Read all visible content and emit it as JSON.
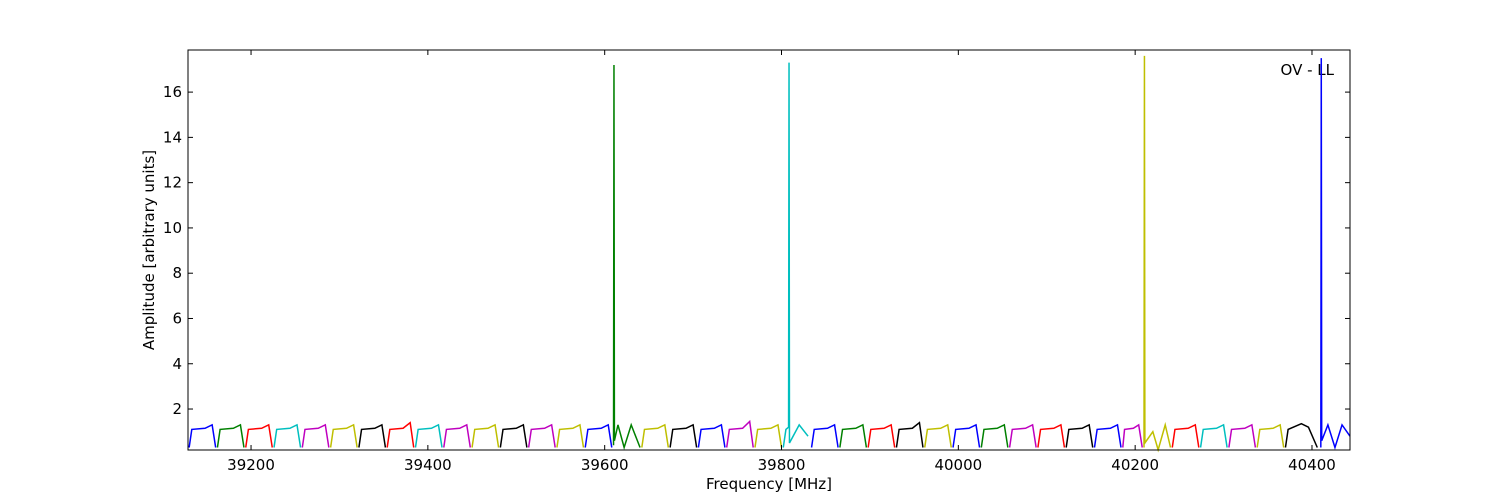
{
  "chart_data": {
    "type": "line",
    "annotation": "OV - LL",
    "xlabel": "Frequency [MHz]",
    "ylabel": "Amplitude [arbitrary units]",
    "xlim": [
      39128.7,
      40443
    ],
    "ylim": [
      0.19,
      17.86
    ],
    "xticks": [
      39200,
      39400,
      39600,
      39800,
      40000,
      40200,
      40400
    ],
    "yticks": [
      2,
      4,
      6,
      8,
      10,
      12,
      14,
      16
    ],
    "series": [
      {
        "color": "#0000ff",
        "x": [
          39130,
          39133,
          39148,
          39156,
          39160
        ],
        "values": [
          0.3,
          1.1,
          1.15,
          1.3,
          0.3
        ]
      },
      {
        "color": "#008000",
        "x": [
          39162,
          39165,
          39180,
          39188,
          39192
        ],
        "values": [
          0.3,
          1.1,
          1.15,
          1.3,
          0.3
        ]
      },
      {
        "color": "#ff0000",
        "x": [
          39194,
          39197,
          39212,
          39220,
          39224
        ],
        "values": [
          0.3,
          1.1,
          1.15,
          1.3,
          0.3
        ]
      },
      {
        "color": "#00bfbf",
        "x": [
          39226,
          39229,
          39244,
          39252,
          39256
        ],
        "values": [
          0.3,
          1.1,
          1.15,
          1.3,
          0.3
        ]
      },
      {
        "color": "#bf00bf",
        "x": [
          39258,
          39261,
          39276,
          39284,
          39288
        ],
        "values": [
          0.3,
          1.1,
          1.15,
          1.3,
          0.3
        ]
      },
      {
        "color": "#bfbf00",
        "x": [
          39290,
          39293,
          39308,
          39316,
          39320
        ],
        "values": [
          0.3,
          1.1,
          1.15,
          1.3,
          0.3
        ]
      },
      {
        "color": "#000000",
        "x": [
          39322,
          39325,
          39340,
          39348,
          39352
        ],
        "values": [
          0.3,
          1.1,
          1.15,
          1.3,
          0.3
        ]
      },
      {
        "color": "#ff0000",
        "x": [
          39354,
          39357,
          39372,
          39380,
          39384
        ],
        "values": [
          0.3,
          1.1,
          1.15,
          1.4,
          0.3
        ]
      },
      {
        "color": "#00bfbf",
        "x": [
          39386,
          39389,
          39404,
          39412,
          39416
        ],
        "values": [
          0.3,
          1.1,
          1.15,
          1.3,
          0.3
        ]
      },
      {
        "color": "#bf00bf",
        "x": [
          39418,
          39421,
          39436,
          39444,
          39448
        ],
        "values": [
          0.3,
          1.1,
          1.15,
          1.3,
          0.3
        ]
      },
      {
        "color": "#bfbf00",
        "x": [
          39450,
          39453,
          39468,
          39476,
          39480
        ],
        "values": [
          0.3,
          1.1,
          1.15,
          1.3,
          0.3
        ]
      },
      {
        "color": "#000000",
        "x": [
          39482,
          39485,
          39500,
          39508,
          39512
        ],
        "values": [
          0.3,
          1.1,
          1.15,
          1.3,
          0.3
        ]
      },
      {
        "color": "#bf00bf",
        "x": [
          39514,
          39517,
          39532,
          39540,
          39544
        ],
        "values": [
          0.3,
          1.1,
          1.15,
          1.3,
          0.3
        ]
      },
      {
        "color": "#bfbf00",
        "x": [
          39546,
          39549,
          39564,
          39572,
          39576
        ],
        "values": [
          0.3,
          1.1,
          1.15,
          1.3,
          0.3
        ]
      },
      {
        "color": "#0000ff",
        "x": [
          39578,
          39581,
          39596,
          39604,
          39608
        ],
        "values": [
          0.3,
          1.1,
          1.15,
          1.3,
          0.3
        ]
      },
      {
        "color": "#008000",
        "x": [
          39610,
          39610.5,
          39611,
          39615,
          39622,
          39630,
          39640
        ],
        "values": [
          0.4,
          17.2,
          0.6,
          1.3,
          0.3,
          1.3,
          0.3
        ]
      },
      {
        "color": "#bfbf00",
        "x": [
          39642,
          39645,
          39660,
          39668,
          39672
        ],
        "values": [
          0.3,
          1.1,
          1.15,
          1.3,
          0.3
        ]
      },
      {
        "color": "#000000",
        "x": [
          39674,
          39677,
          39692,
          39700,
          39704
        ],
        "values": [
          0.3,
          1.1,
          1.15,
          1.3,
          0.3
        ]
      },
      {
        "color": "#0000ff",
        "x": [
          39706,
          39709,
          39724,
          39732,
          39736
        ],
        "values": [
          0.3,
          1.1,
          1.15,
          1.3,
          0.3
        ]
      },
      {
        "color": "#bf00bf",
        "x": [
          39738,
          39741,
          39756,
          39764,
          39768
        ],
        "values": [
          0.3,
          1.1,
          1.15,
          1.45,
          0.3
        ]
      },
      {
        "color": "#bfbf00",
        "x": [
          39770,
          39773,
          39788,
          39796,
          39800
        ],
        "values": [
          0.3,
          1.1,
          1.15,
          1.3,
          0.3
        ]
      },
      {
        "color": "#00bfbf",
        "x": [
          39802,
          39805,
          39808,
          39808.5,
          39809,
          39820,
          39830
        ],
        "values": [
          0.3,
          1.1,
          1.2,
          17.3,
          0.5,
          1.3,
          0.8
        ]
      },
      {
        "color": "#0000ff",
        "x": [
          39834,
          39837,
          39852,
          39860,
          39864
        ],
        "values": [
          0.3,
          1.1,
          1.15,
          1.3,
          0.3
        ]
      },
      {
        "color": "#008000",
        "x": [
          39866,
          39869,
          39884,
          39892,
          39896
        ],
        "values": [
          0.3,
          1.1,
          1.15,
          1.3,
          0.3
        ]
      },
      {
        "color": "#ff0000",
        "x": [
          39898,
          39901,
          39916,
          39924,
          39928
        ],
        "values": [
          0.3,
          1.1,
          1.15,
          1.3,
          0.3
        ]
      },
      {
        "color": "#000000",
        "x": [
          39930,
          39933,
          39948,
          39956,
          39960
        ],
        "values": [
          0.3,
          1.1,
          1.15,
          1.4,
          0.3
        ]
      },
      {
        "color": "#bfbf00",
        "x": [
          39962,
          39965,
          39980,
          39988,
          39992
        ],
        "values": [
          0.3,
          1.1,
          1.15,
          1.3,
          0.3
        ]
      },
      {
        "color": "#0000ff",
        "x": [
          39994,
          39997,
          40012,
          40020,
          40024
        ],
        "values": [
          0.3,
          1.1,
          1.15,
          1.3,
          0.3
        ]
      },
      {
        "color": "#008000",
        "x": [
          40026,
          40029,
          40044,
          40052,
          40056
        ],
        "values": [
          0.3,
          1.1,
          1.15,
          1.3,
          0.3
        ]
      },
      {
        "color": "#bf00bf",
        "x": [
          40058,
          40061,
          40076,
          40084,
          40088
        ],
        "values": [
          0.3,
          1.1,
          1.15,
          1.3,
          0.3
        ]
      },
      {
        "color": "#ff0000",
        "x": [
          40090,
          40093,
          40108,
          40116,
          40120
        ],
        "values": [
          0.3,
          1.1,
          1.15,
          1.3,
          0.3
        ]
      },
      {
        "color": "#000000",
        "x": [
          40122,
          40125,
          40140,
          40148,
          40152
        ],
        "values": [
          0.3,
          1.1,
          1.15,
          1.3,
          0.3
        ]
      },
      {
        "color": "#0000ff",
        "x": [
          40154,
          40157,
          40172,
          40180,
          40184
        ],
        "values": [
          0.3,
          1.1,
          1.15,
          1.3,
          0.3
        ]
      },
      {
        "color": "#bf00bf",
        "x": [
          40186,
          40188,
          40198,
          40204,
          40208
        ],
        "values": [
          0.3,
          1.1,
          1.15,
          1.3,
          0.3
        ]
      },
      {
        "color": "#bfbf00",
        "x": [
          40210,
          40210.5,
          40211,
          40220,
          40226,
          40234,
          40240
        ],
        "values": [
          0.3,
          17.6,
          0.5,
          1.0,
          0.2,
          1.3,
          0.3
        ]
      },
      {
        "color": "#ff0000",
        "x": [
          40242,
          40245,
          40260,
          40268,
          40272
        ],
        "values": [
          0.3,
          1.1,
          1.15,
          1.3,
          0.3
        ]
      },
      {
        "color": "#00bfbf",
        "x": [
          40274,
          40277,
          40292,
          40300,
          40304
        ],
        "values": [
          0.3,
          1.1,
          1.15,
          1.3,
          0.3
        ]
      },
      {
        "color": "#bf00bf",
        "x": [
          40306,
          40309,
          40324,
          40332,
          40336
        ],
        "values": [
          0.3,
          1.1,
          1.15,
          1.3,
          0.3
        ]
      },
      {
        "color": "#bfbf00",
        "x": [
          40338,
          40341,
          40356,
          40364,
          40368
        ],
        "values": [
          0.3,
          1.1,
          1.15,
          1.3,
          0.3
        ]
      },
      {
        "color": "#000000",
        "x": [
          40370,
          40373,
          40388,
          40396,
          40406
        ],
        "values": [
          0.3,
          1.1,
          1.35,
          1.2,
          0.3
        ]
      },
      {
        "color": "#0000ff",
        "x": [
          40410,
          40410.5,
          40411,
          40418,
          40426,
          40434,
          40443
        ],
        "values": [
          0.3,
          17.5,
          0.6,
          1.3,
          0.3,
          1.3,
          0.8
        ]
      }
    ]
  }
}
